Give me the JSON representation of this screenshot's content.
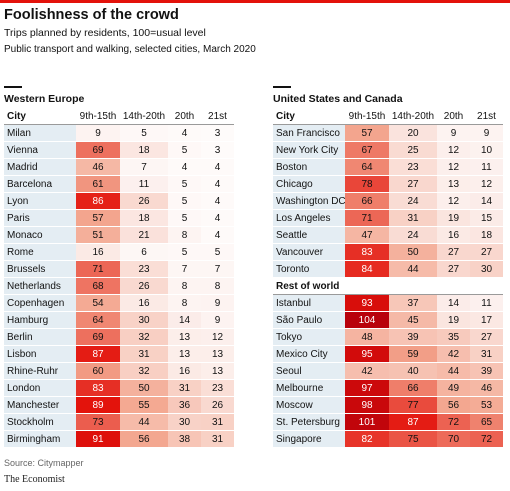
{
  "title": "Foolishness of the crowd",
  "subtitle": "Trips planned by residents, 100=usual level",
  "subtitle2": "Public transport and walking, selected cities, March 2020",
  "source": "Source: Citymapper",
  "brand": "The Economist",
  "colors": {
    "accent": "#e3120b",
    "city_cell": "#e4edf3",
    "heat_low": "#fbeae6",
    "heat_mid": "#f3a48c",
    "heat_high": "#e3120b",
    "heat_top": "#b5000b"
  },
  "chart_data": {
    "type": "table",
    "columns": [
      "City",
      "9th-15th",
      "14th-20th",
      "20th",
      "21st"
    ],
    "color_scale": {
      "min": 0,
      "max": 105
    },
    "panels": [
      {
        "title": "Western Europe",
        "groups": [
          {
            "label": "",
            "rows": [
              {
                "city": "Milan",
                "values": [
                  9,
                  5,
                  4,
                  3
                ]
              },
              {
                "city": "Vienna",
                "values": [
                  69,
                  18,
                  5,
                  3
                ]
              },
              {
                "city": "Madrid",
                "values": [
                  46,
                  7,
                  4,
                  4
                ]
              },
              {
                "city": "Barcelona",
                "values": [
                  61,
                  11,
                  5,
                  4
                ]
              },
              {
                "city": "Lyon",
                "values": [
                  86,
                  26,
                  5,
                  4
                ]
              },
              {
                "city": "Paris",
                "values": [
                  57,
                  18,
                  5,
                  4
                ]
              },
              {
                "city": "Monaco",
                "values": [
                  51,
                  21,
                  8,
                  4
                ]
              },
              {
                "city": "Rome",
                "values": [
                  16,
                  6,
                  5,
                  5
                ]
              },
              {
                "city": "Brussels",
                "values": [
                  71,
                  23,
                  7,
                  7
                ]
              },
              {
                "city": "Netherlands",
                "values": [
                  68,
                  26,
                  8,
                  8
                ]
              },
              {
                "city": "Copenhagen",
                "values": [
                  54,
                  16,
                  8,
                  9
                ]
              },
              {
                "city": "Hamburg",
                "values": [
                  64,
                  30,
                  14,
                  9
                ]
              },
              {
                "city": "Berlin",
                "values": [
                  69,
                  32,
                  13,
                  12
                ]
              },
              {
                "city": "Lisbon",
                "values": [
                  87,
                  31,
                  13,
                  13
                ]
              },
              {
                "city": "Rhine-Ruhr",
                "values": [
                  60,
                  32,
                  16,
                  13
                ]
              },
              {
                "city": "London",
                "values": [
                  83,
                  50,
                  31,
                  23
                ]
              },
              {
                "city": "Manchester",
                "values": [
                  89,
                  55,
                  36,
                  26
                ]
              },
              {
                "city": "Stockholm",
                "values": [
                  73,
                  44,
                  30,
                  31
                ]
              },
              {
                "city": "Birmingham",
                "values": [
                  91,
                  56,
                  38,
                  31
                ]
              }
            ]
          }
        ]
      },
      {
        "title": "United States and Canada",
        "groups": [
          {
            "label": "",
            "rows": [
              {
                "city": "San Francisco",
                "values": [
                  57,
                  20,
                  9,
                  9
                ]
              },
              {
                "city": "New York City",
                "values": [
                  67,
                  25,
                  12,
                  10
                ]
              },
              {
                "city": "Boston",
                "values": [
                  64,
                  23,
                  12,
                  11
                ]
              },
              {
                "city": "Chicago",
                "values": [
                  78,
                  27,
                  13,
                  12
                ]
              },
              {
                "city": "Washington DC",
                "values": [
                  66,
                  24,
                  12,
                  14
                ]
              },
              {
                "city": "Los Angeles",
                "values": [
                  71,
                  31,
                  19,
                  15
                ]
              },
              {
                "city": "Seattle",
                "values": [
                  47,
                  24,
                  16,
                  18
                ]
              },
              {
                "city": "Vancouver",
                "values": [
                  83,
                  50,
                  27,
                  27
                ]
              },
              {
                "city": "Toronto",
                "values": [
                  84,
                  44,
                  27,
                  30
                ]
              }
            ]
          },
          {
            "label": "Rest of world",
            "rows": [
              {
                "city": "Istanbul",
                "values": [
                  93,
                  37,
                  14,
                  11
                ]
              },
              {
                "city": "São Paulo",
                "values": [
                  104,
                  45,
                  19,
                  17
                ]
              },
              {
                "city": "Tokyo",
                "values": [
                  48,
                  39,
                  35,
                  27
                ]
              },
              {
                "city": "Mexico City",
                "values": [
                  95,
                  59,
                  42,
                  31
                ]
              },
              {
                "city": "Seoul",
                "values": [
                  42,
                  40,
                  44,
                  39
                ]
              },
              {
                "city": "Melbourne",
                "values": [
                  97,
                  66,
                  49,
                  46
                ]
              },
              {
                "city": "Moscow",
                "values": [
                  98,
                  77,
                  56,
                  53
                ]
              },
              {
                "city": "St. Petersburg",
                "values": [
                  101,
                  87,
                  72,
                  65
                ]
              },
              {
                "city": "Singapore",
                "values": [
                  82,
                  75,
                  70,
                  72
                ]
              }
            ]
          }
        ]
      }
    ]
  }
}
